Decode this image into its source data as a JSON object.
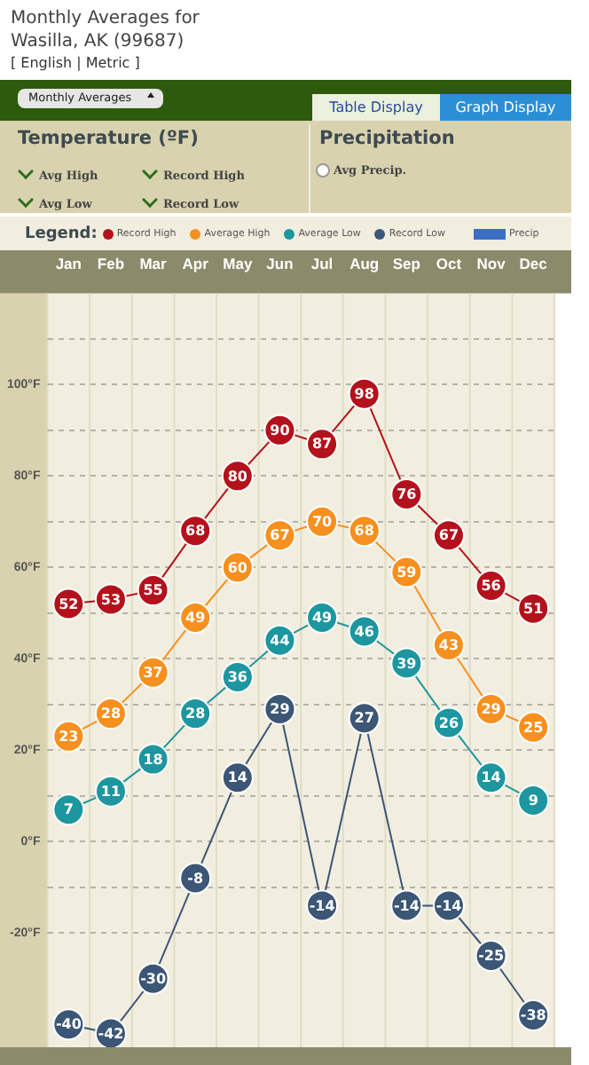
{
  "chart_data": {
    "type": "line",
    "title": "Monthly Averages for Wasilla, AK (99687)",
    "legend_title": "Legend:",
    "annotations": [
      "[ English | Metric ]",
      "Monthly Averages",
      "Table Display",
      "Graph Display",
      "Temperature (ºF)",
      "Avg High",
      "Record High",
      "Avg Low",
      "Record Low",
      "Precipitation",
      "Avg Precip."
    ],
    "categories": [
      "Jan",
      "Feb",
      "Mar",
      "Apr",
      "May",
      "Jun",
      "Jul",
      "Aug",
      "Sep",
      "Oct",
      "Nov",
      "Dec"
    ],
    "series": [
      {
        "name": "Record High",
        "color": "#b3121c",
        "values": [
          52,
          53,
          55,
          68,
          80,
          90,
          87,
          98,
          76,
          67,
          56,
          51
        ]
      },
      {
        "name": "Average High",
        "color": "#f7901e",
        "values": [
          23,
          28,
          37,
          49,
          60,
          67,
          70,
          68,
          59,
          43,
          29,
          25
        ]
      },
      {
        "name": "Average Low",
        "color": "#1e96a0",
        "values": [
          7,
          11,
          18,
          28,
          36,
          44,
          49,
          46,
          39,
          26,
          14,
          9
        ]
      },
      {
        "name": "Record Low",
        "color": "#3c5676",
        "values": [
          -40,
          -42,
          -30,
          -8,
          14,
          29,
          -14,
          27,
          -14,
          -14,
          -25,
          -38
        ]
      },
      {
        "name": "Precip",
        "type": "bar",
        "color": "#3b6fc4",
        "values": [
          null,
          null,
          null,
          null,
          null,
          null,
          null,
          null,
          null,
          null,
          null,
          null
        ]
      }
    ],
    "ylim": [
      -45,
      120
    ],
    "yticks": [
      {
        "value": -20,
        "label": "-20°F"
      },
      {
        "value": -10,
        "label": null
      },
      {
        "value": 0,
        "label": "0°F"
      },
      {
        "value": 10,
        "label": null
      },
      {
        "value": 20,
        "label": "20°F"
      },
      {
        "value": 30,
        "label": null
      },
      {
        "value": 40,
        "label": "40°F"
      },
      {
        "value": 50,
        "label": null
      },
      {
        "value": 60,
        "label": "60°F"
      },
      {
        "value": 70,
        "label": null
      },
      {
        "value": 80,
        "label": "80°F"
      },
      {
        "value": 90,
        "label": null
      },
      {
        "value": 100,
        "label": "100°F"
      },
      {
        "value": 110,
        "label": null
      }
    ],
    "grid": "y",
    "legend": "top",
    "marker": "circle",
    "data_labels": true,
    "line_style": "solid"
  }
}
